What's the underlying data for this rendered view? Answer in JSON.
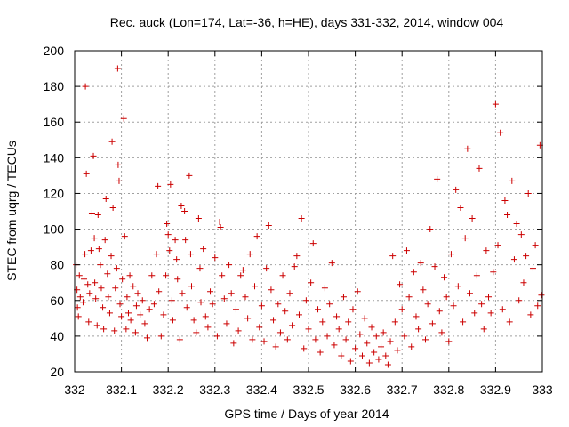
{
  "chart_data": {
    "type": "scatter",
    "title": "Rec. auck (Lon=174, Lat=-36, h=HE), days 331-332, 2014, window 004",
    "xlabel": "GPS time / Days of year 2014",
    "ylabel": "STEC from uqrg / TECUs",
    "xlim": [
      332,
      333
    ],
    "ylim": [
      20,
      200
    ],
    "xticks": [
      332,
      332.1,
      332.2,
      332.3,
      332.4,
      332.5,
      332.6,
      332.7,
      332.8,
      332.9,
      333
    ],
    "xtick_labels": [
      "332",
      "332.1",
      "332.2",
      "332.3",
      "332.4",
      "332.5",
      "332.6",
      "332.7",
      "332.8",
      "332.9",
      "333"
    ],
    "yticks": [
      20,
      40,
      60,
      80,
      100,
      120,
      140,
      160,
      180,
      200
    ],
    "ytick_labels": [
      "20",
      "40",
      "60",
      "80",
      "100",
      "120",
      "140",
      "160",
      "180",
      "200"
    ],
    "grid": true,
    "marker": "+",
    "color": "#cc0000",
    "points": [
      [
        332.003,
        80
      ],
      [
        332.005,
        66
      ],
      [
        332.006,
        56
      ],
      [
        332.008,
        51
      ],
      [
        332.01,
        74
      ],
      [
        332.012,
        62
      ],
      [
        332.018,
        59
      ],
      [
        332.02,
        72
      ],
      [
        332.022,
        86
      ],
      [
        332.023,
        180
      ],
      [
        332.025,
        131
      ],
      [
        332.028,
        69
      ],
      [
        332.03,
        48
      ],
      [
        332.032,
        64
      ],
      [
        332.035,
        88
      ],
      [
        332.037,
        109
      ],
      [
        332.04,
        141
      ],
      [
        332.042,
        95
      ],
      [
        332.043,
        70
      ],
      [
        332.045,
        61
      ],
      [
        332.048,
        46
      ],
      [
        332.05,
        108
      ],
      [
        332.052,
        89
      ],
      [
        332.055,
        80
      ],
      [
        332.057,
        67
      ],
      [
        332.06,
        56
      ],
      [
        332.062,
        44
      ],
      [
        332.065,
        94
      ],
      [
        332.067,
        117
      ],
      [
        332.07,
        75
      ],
      [
        332.072,
        62
      ],
      [
        332.075,
        53
      ],
      [
        332.078,
        85
      ],
      [
        332.08,
        149
      ],
      [
        332.082,
        112
      ],
      [
        332.085,
        43
      ],
      [
        332.087,
        67
      ],
      [
        332.09,
        78
      ],
      [
        332.092,
        190
      ],
      [
        332.093,
        136
      ],
      [
        332.095,
        127
      ],
      [
        332.097,
        58
      ],
      [
        332.1,
        51
      ],
      [
        332.102,
        72
      ],
      [
        332.105,
        162
      ],
      [
        332.107,
        96
      ],
      [
        332.11,
        44
      ],
      [
        332.112,
        62
      ],
      [
        332.115,
        53
      ],
      [
        332.118,
        74
      ],
      [
        332.12,
        49
      ],
      [
        332.125,
        68
      ],
      [
        332.13,
        42
      ],
      [
        332.132,
        57
      ],
      [
        332.135,
        64
      ],
      [
        332.14,
        52
      ],
      [
        332.145,
        60
      ],
      [
        332.15,
        47
      ],
      [
        332.155,
        39
      ],
      [
        332.16,
        55
      ],
      [
        332.165,
        74
      ],
      [
        332.17,
        58
      ],
      [
        332.175,
        86
      ],
      [
        332.178,
        124
      ],
      [
        332.18,
        65
      ],
      [
        332.185,
        40
      ],
      [
        332.19,
        52
      ],
      [
        332.195,
        74
      ],
      [
        332.197,
        103
      ],
      [
        332.2,
        97
      ],
      [
        332.203,
        88
      ],
      [
        332.205,
        125
      ],
      [
        332.208,
        60
      ],
      [
        332.21,
        49
      ],
      [
        332.215,
        94
      ],
      [
        332.218,
        83
      ],
      [
        332.22,
        72
      ],
      [
        332.225,
        38
      ],
      [
        332.228,
        113
      ],
      [
        332.23,
        64
      ],
      [
        332.235,
        110
      ],
      [
        332.237,
        94
      ],
      [
        332.24,
        56
      ],
      [
        332.245,
        130
      ],
      [
        332.248,
        86
      ],
      [
        332.25,
        68
      ],
      [
        332.255,
        49
      ],
      [
        332.26,
        42
      ],
      [
        332.265,
        106
      ],
      [
        332.268,
        78
      ],
      [
        332.27,
        59
      ],
      [
        332.275,
        89
      ],
      [
        332.28,
        51
      ],
      [
        332.285,
        45
      ],
      [
        332.29,
        65
      ],
      [
        332.295,
        58
      ],
      [
        332.3,
        84
      ],
      [
        332.305,
        40
      ],
      [
        332.31,
        104
      ],
      [
        332.312,
        101
      ],
      [
        332.315,
        74
      ],
      [
        332.32,
        61
      ],
      [
        332.325,
        47
      ],
      [
        332.33,
        80
      ],
      [
        332.335,
        64
      ],
      [
        332.34,
        36
      ],
      [
        332.345,
        55
      ],
      [
        332.35,
        43
      ],
      [
        332.355,
        74
      ],
      [
        332.36,
        77
      ],
      [
        332.365,
        62
      ],
      [
        332.37,
        50
      ],
      [
        332.375,
        86
      ],
      [
        332.38,
        38
      ],
      [
        332.385,
        68
      ],
      [
        332.39,
        96
      ],
      [
        332.395,
        45
      ],
      [
        332.4,
        57
      ],
      [
        332.405,
        37
      ],
      [
        332.41,
        78
      ],
      [
        332.415,
        102
      ],
      [
        332.42,
        66
      ],
      [
        332.425,
        49
      ],
      [
        332.43,
        34
      ],
      [
        332.435,
        58
      ],
      [
        332.44,
        42
      ],
      [
        332.445,
        74
      ],
      [
        332.45,
        54
      ],
      [
        332.455,
        38
      ],
      [
        332.46,
        64
      ],
      [
        332.465,
        46
      ],
      [
        332.47,
        79
      ],
      [
        332.475,
        85
      ],
      [
        332.48,
        52
      ],
      [
        332.485,
        106
      ],
      [
        332.49,
        33
      ],
      [
        332.495,
        60
      ],
      [
        332.5,
        44
      ],
      [
        332.505,
        70
      ],
      [
        332.51,
        92
      ],
      [
        332.515,
        38
      ],
      [
        332.52,
        55
      ],
      [
        332.525,
        31
      ],
      [
        332.53,
        48
      ],
      [
        332.535,
        67
      ],
      [
        332.54,
        40
      ],
      [
        332.545,
        58
      ],
      [
        332.55,
        81
      ],
      [
        332.555,
        35
      ],
      [
        332.56,
        51
      ],
      [
        332.565,
        44
      ],
      [
        332.57,
        29
      ],
      [
        332.575,
        62
      ],
      [
        332.58,
        38
      ],
      [
        332.585,
        48
      ],
      [
        332.59,
        26
      ],
      [
        332.595,
        55
      ],
      [
        332.6,
        33
      ],
      [
        332.605,
        65
      ],
      [
        332.61,
        41
      ],
      [
        332.615,
        29
      ],
      [
        332.62,
        50
      ],
      [
        332.625,
        36
      ],
      [
        332.63,
        25
      ],
      [
        332.635,
        45
      ],
      [
        332.64,
        31
      ],
      [
        332.645,
        40
      ],
      [
        332.65,
        27
      ],
      [
        332.655,
        34
      ],
      [
        332.66,
        42
      ],
      [
        332.665,
        29
      ],
      [
        332.67,
        24
      ],
      [
        332.675,
        37
      ],
      [
        332.68,
        85
      ],
      [
        332.685,
        48
      ],
      [
        332.69,
        32
      ],
      [
        332.695,
        69
      ],
      [
        332.7,
        55
      ],
      [
        332.705,
        40
      ],
      [
        332.71,
        88
      ],
      [
        332.715,
        62
      ],
      [
        332.72,
        34
      ],
      [
        332.725,
        76
      ],
      [
        332.73,
        51
      ],
      [
        332.735,
        44
      ],
      [
        332.74,
        81
      ],
      [
        332.745,
        66
      ],
      [
        332.75,
        38
      ],
      [
        332.755,
        58
      ],
      [
        332.76,
        100
      ],
      [
        332.765,
        47
      ],
      [
        332.77,
        79
      ],
      [
        332.775,
        128
      ],
      [
        332.78,
        54
      ],
      [
        332.785,
        42
      ],
      [
        332.79,
        73
      ],
      [
        332.795,
        62
      ],
      [
        332.8,
        37
      ],
      [
        332.805,
        86
      ],
      [
        332.81,
        57
      ],
      [
        332.815,
        122
      ],
      [
        332.82,
        68
      ],
      [
        332.825,
        112
      ],
      [
        332.83,
        48
      ],
      [
        332.835,
        95
      ],
      [
        332.84,
        145
      ],
      [
        332.845,
        64
      ],
      [
        332.85,
        106
      ],
      [
        332.855,
        53
      ],
      [
        332.86,
        74
      ],
      [
        332.865,
        134
      ],
      [
        332.87,
        58
      ],
      [
        332.875,
        44
      ],
      [
        332.88,
        88
      ],
      [
        332.885,
        62
      ],
      [
        332.89,
        53
      ],
      [
        332.895,
        76
      ],
      [
        332.9,
        170
      ],
      [
        332.905,
        91
      ],
      [
        332.91,
        154
      ],
      [
        332.915,
        55
      ],
      [
        332.92,
        116
      ],
      [
        332.925,
        108
      ],
      [
        332.93,
        48
      ],
      [
        332.935,
        127
      ],
      [
        332.94,
        83
      ],
      [
        332.945,
        103
      ],
      [
        332.95,
        60
      ],
      [
        332.955,
        97
      ],
      [
        332.96,
        70
      ],
      [
        332.965,
        85
      ],
      [
        332.97,
        120
      ],
      [
        332.975,
        52
      ],
      [
        332.98,
        78
      ],
      [
        332.985,
        91
      ],
      [
        332.99,
        57
      ],
      [
        332.995,
        147
      ],
      [
        332.998,
        63
      ]
    ]
  }
}
